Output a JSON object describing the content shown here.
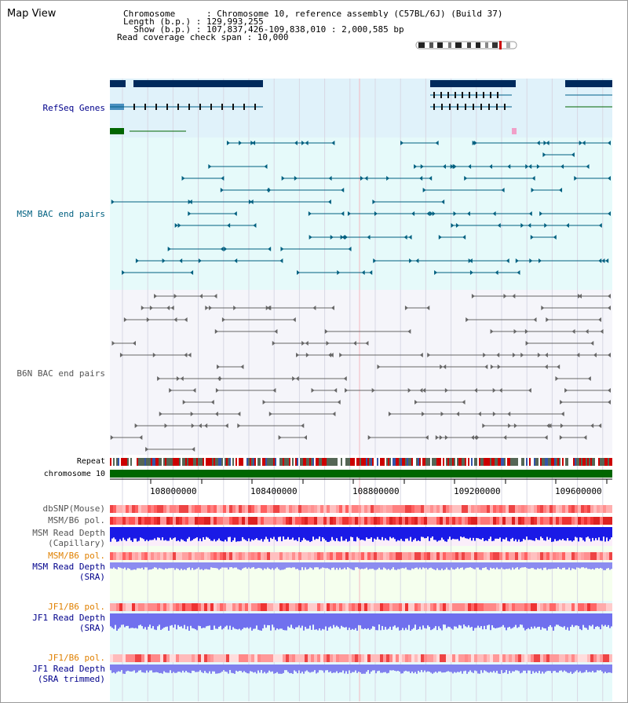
{
  "map_title": "Map View",
  "header": {
    "chromosome": "Chromosome      : Chromosome 10, reference assembly (C57BL/6J) (Build 37)",
    "length": "Length (b.p.) : 129,993,255",
    "show": "  Show (b.p.) : 107,837,426-109,838,010 : 2,000,585 bp",
    "coverage": "Read coverage check span : 10,000"
  },
  "tracks": {
    "refseq": "RefSeq Genes",
    "msm_bac": "MSM BAC end pairs",
    "b6n_bac": "B6N BAC end pairs",
    "repeat": "Repeat",
    "chromosome": "chromosome 10",
    "dbsnp": "dbSNP(Mouse)",
    "msm_b6_pol": "MSM/B6 pol.",
    "msm_depth_cap_1": "MSM Read Depth",
    "msm_depth_cap_2": "(Capillary)",
    "msm_b6_pol_sra": "MSM/B6 pol.",
    "msm_depth_sra_1": "MSM Read Depth",
    "msm_depth_sra_2": "(SRA)",
    "jf1_pol_1": "JF1/B6 pol.",
    "jf1_depth_1": "JF1 Read Depth",
    "jf1_depth_1b": "(SRA)",
    "jf1_pol_2": "JF1/B6 pol.",
    "jf1_depth_2": "JF1 Read Depth",
    "jf1_depth_2b": "(SRA trimmed)"
  },
  "axis_ticks": [
    "108000000",
    "108400000",
    "108800000",
    "109200000",
    "109600000"
  ],
  "colors": {
    "gene_blue": "#002a5c",
    "refseq_bg": "#e0f2fa",
    "msm_bg": "#e6fafa",
    "b6n_bg": "#f5f5fa",
    "chromosome_green": "#006600",
    "label_blue": "#00008b",
    "label_teal": "#006080",
    "label_orange": "#e08000",
    "label_gray": "#555555"
  }
}
